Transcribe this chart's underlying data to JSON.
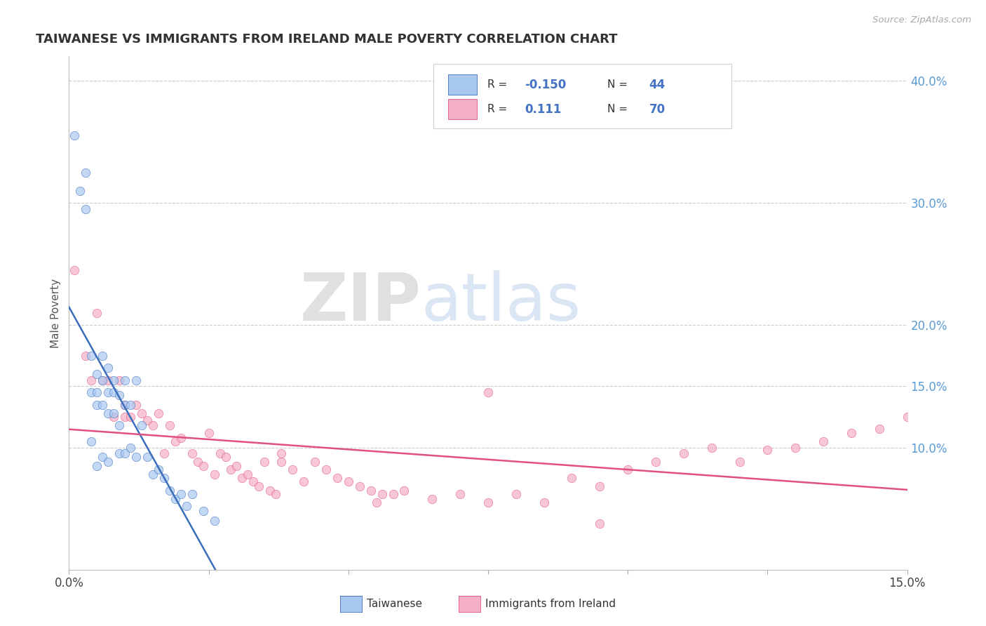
{
  "title": "TAIWANESE VS IMMIGRANTS FROM IRELAND MALE POVERTY CORRELATION CHART",
  "source_text": "Source: ZipAtlas.com",
  "ylabel": "Male Poverty",
  "xlim": [
    0.0,
    0.15
  ],
  "ylim": [
    0.0,
    0.42
  ],
  "xticks": [
    0.0,
    0.025,
    0.05,
    0.075,
    0.1,
    0.125,
    0.15
  ],
  "xtick_labels": [
    "0.0%",
    "",
    "",
    "",
    "",
    "",
    "15.0%"
  ],
  "yticks_right": [
    0.1,
    0.15,
    0.2,
    0.3,
    0.4
  ],
  "ytick_right_labels": [
    "10.0%",
    "15.0%",
    "20.0%",
    "30.0%",
    "40.0%"
  ],
  "grid_color": "#cccccc",
  "background_color": "#ffffff",
  "watermark_zip": "ZIP",
  "watermark_atlas": "atlas",
  "legend_R1": "-0.150",
  "legend_N1": "44",
  "legend_R2": "0.111",
  "legend_N2": "70",
  "color_taiwanese": "#a8c8f0",
  "color_ireland": "#f5b0c5",
  "color_trend_taiwanese": "#3a6dba",
  "color_trend_ireland": "#e05080",
  "taiwanese_x": [
    0.001,
    0.002,
    0.003,
    0.003,
    0.004,
    0.004,
    0.004,
    0.005,
    0.005,
    0.005,
    0.005,
    0.006,
    0.006,
    0.006,
    0.006,
    0.007,
    0.007,
    0.007,
    0.007,
    0.008,
    0.008,
    0.008,
    0.009,
    0.009,
    0.009,
    0.01,
    0.01,
    0.01,
    0.011,
    0.011,
    0.012,
    0.012,
    0.013,
    0.014,
    0.015,
    0.016,
    0.017,
    0.018,
    0.019,
    0.02,
    0.021,
    0.022,
    0.024,
    0.026
  ],
  "taiwanese_y": [
    0.355,
    0.31,
    0.295,
    0.325,
    0.175,
    0.145,
    0.105,
    0.16,
    0.145,
    0.135,
    0.085,
    0.175,
    0.155,
    0.135,
    0.092,
    0.165,
    0.145,
    0.128,
    0.088,
    0.155,
    0.145,
    0.128,
    0.143,
    0.118,
    0.095,
    0.155,
    0.135,
    0.095,
    0.135,
    0.1,
    0.155,
    0.092,
    0.118,
    0.092,
    0.078,
    0.082,
    0.075,
    0.065,
    0.058,
    0.062,
    0.052,
    0.062,
    0.048,
    0.04
  ],
  "ireland_x": [
    0.001,
    0.003,
    0.004,
    0.006,
    0.007,
    0.008,
    0.009,
    0.01,
    0.01,
    0.011,
    0.012,
    0.013,
    0.014,
    0.015,
    0.016,
    0.017,
    0.018,
    0.019,
    0.02,
    0.022,
    0.023,
    0.024,
    0.025,
    0.026,
    0.027,
    0.028,
    0.029,
    0.03,
    0.031,
    0.032,
    0.033,
    0.034,
    0.035,
    0.036,
    0.037,
    0.038,
    0.04,
    0.042,
    0.044,
    0.046,
    0.048,
    0.05,
    0.052,
    0.054,
    0.056,
    0.058,
    0.06,
    0.065,
    0.07,
    0.075,
    0.08,
    0.085,
    0.09,
    0.095,
    0.1,
    0.105,
    0.11,
    0.115,
    0.12,
    0.125,
    0.13,
    0.135,
    0.14,
    0.145,
    0.15,
    0.038,
    0.055,
    0.075,
    0.095,
    0.005
  ],
  "ireland_y": [
    0.245,
    0.175,
    0.155,
    0.155,
    0.155,
    0.125,
    0.155,
    0.135,
    0.125,
    0.125,
    0.135,
    0.128,
    0.122,
    0.118,
    0.128,
    0.095,
    0.118,
    0.105,
    0.108,
    0.095,
    0.088,
    0.085,
    0.112,
    0.078,
    0.095,
    0.092,
    0.082,
    0.085,
    0.075,
    0.078,
    0.072,
    0.068,
    0.088,
    0.065,
    0.062,
    0.088,
    0.082,
    0.072,
    0.088,
    0.082,
    0.075,
    0.072,
    0.068,
    0.065,
    0.062,
    0.062,
    0.065,
    0.058,
    0.062,
    0.055,
    0.062,
    0.055,
    0.075,
    0.068,
    0.082,
    0.088,
    0.095,
    0.1,
    0.088,
    0.098,
    0.1,
    0.105,
    0.112,
    0.115,
    0.125,
    0.095,
    0.055,
    0.145,
    0.038,
    0.21
  ],
  "marker_size": 80
}
